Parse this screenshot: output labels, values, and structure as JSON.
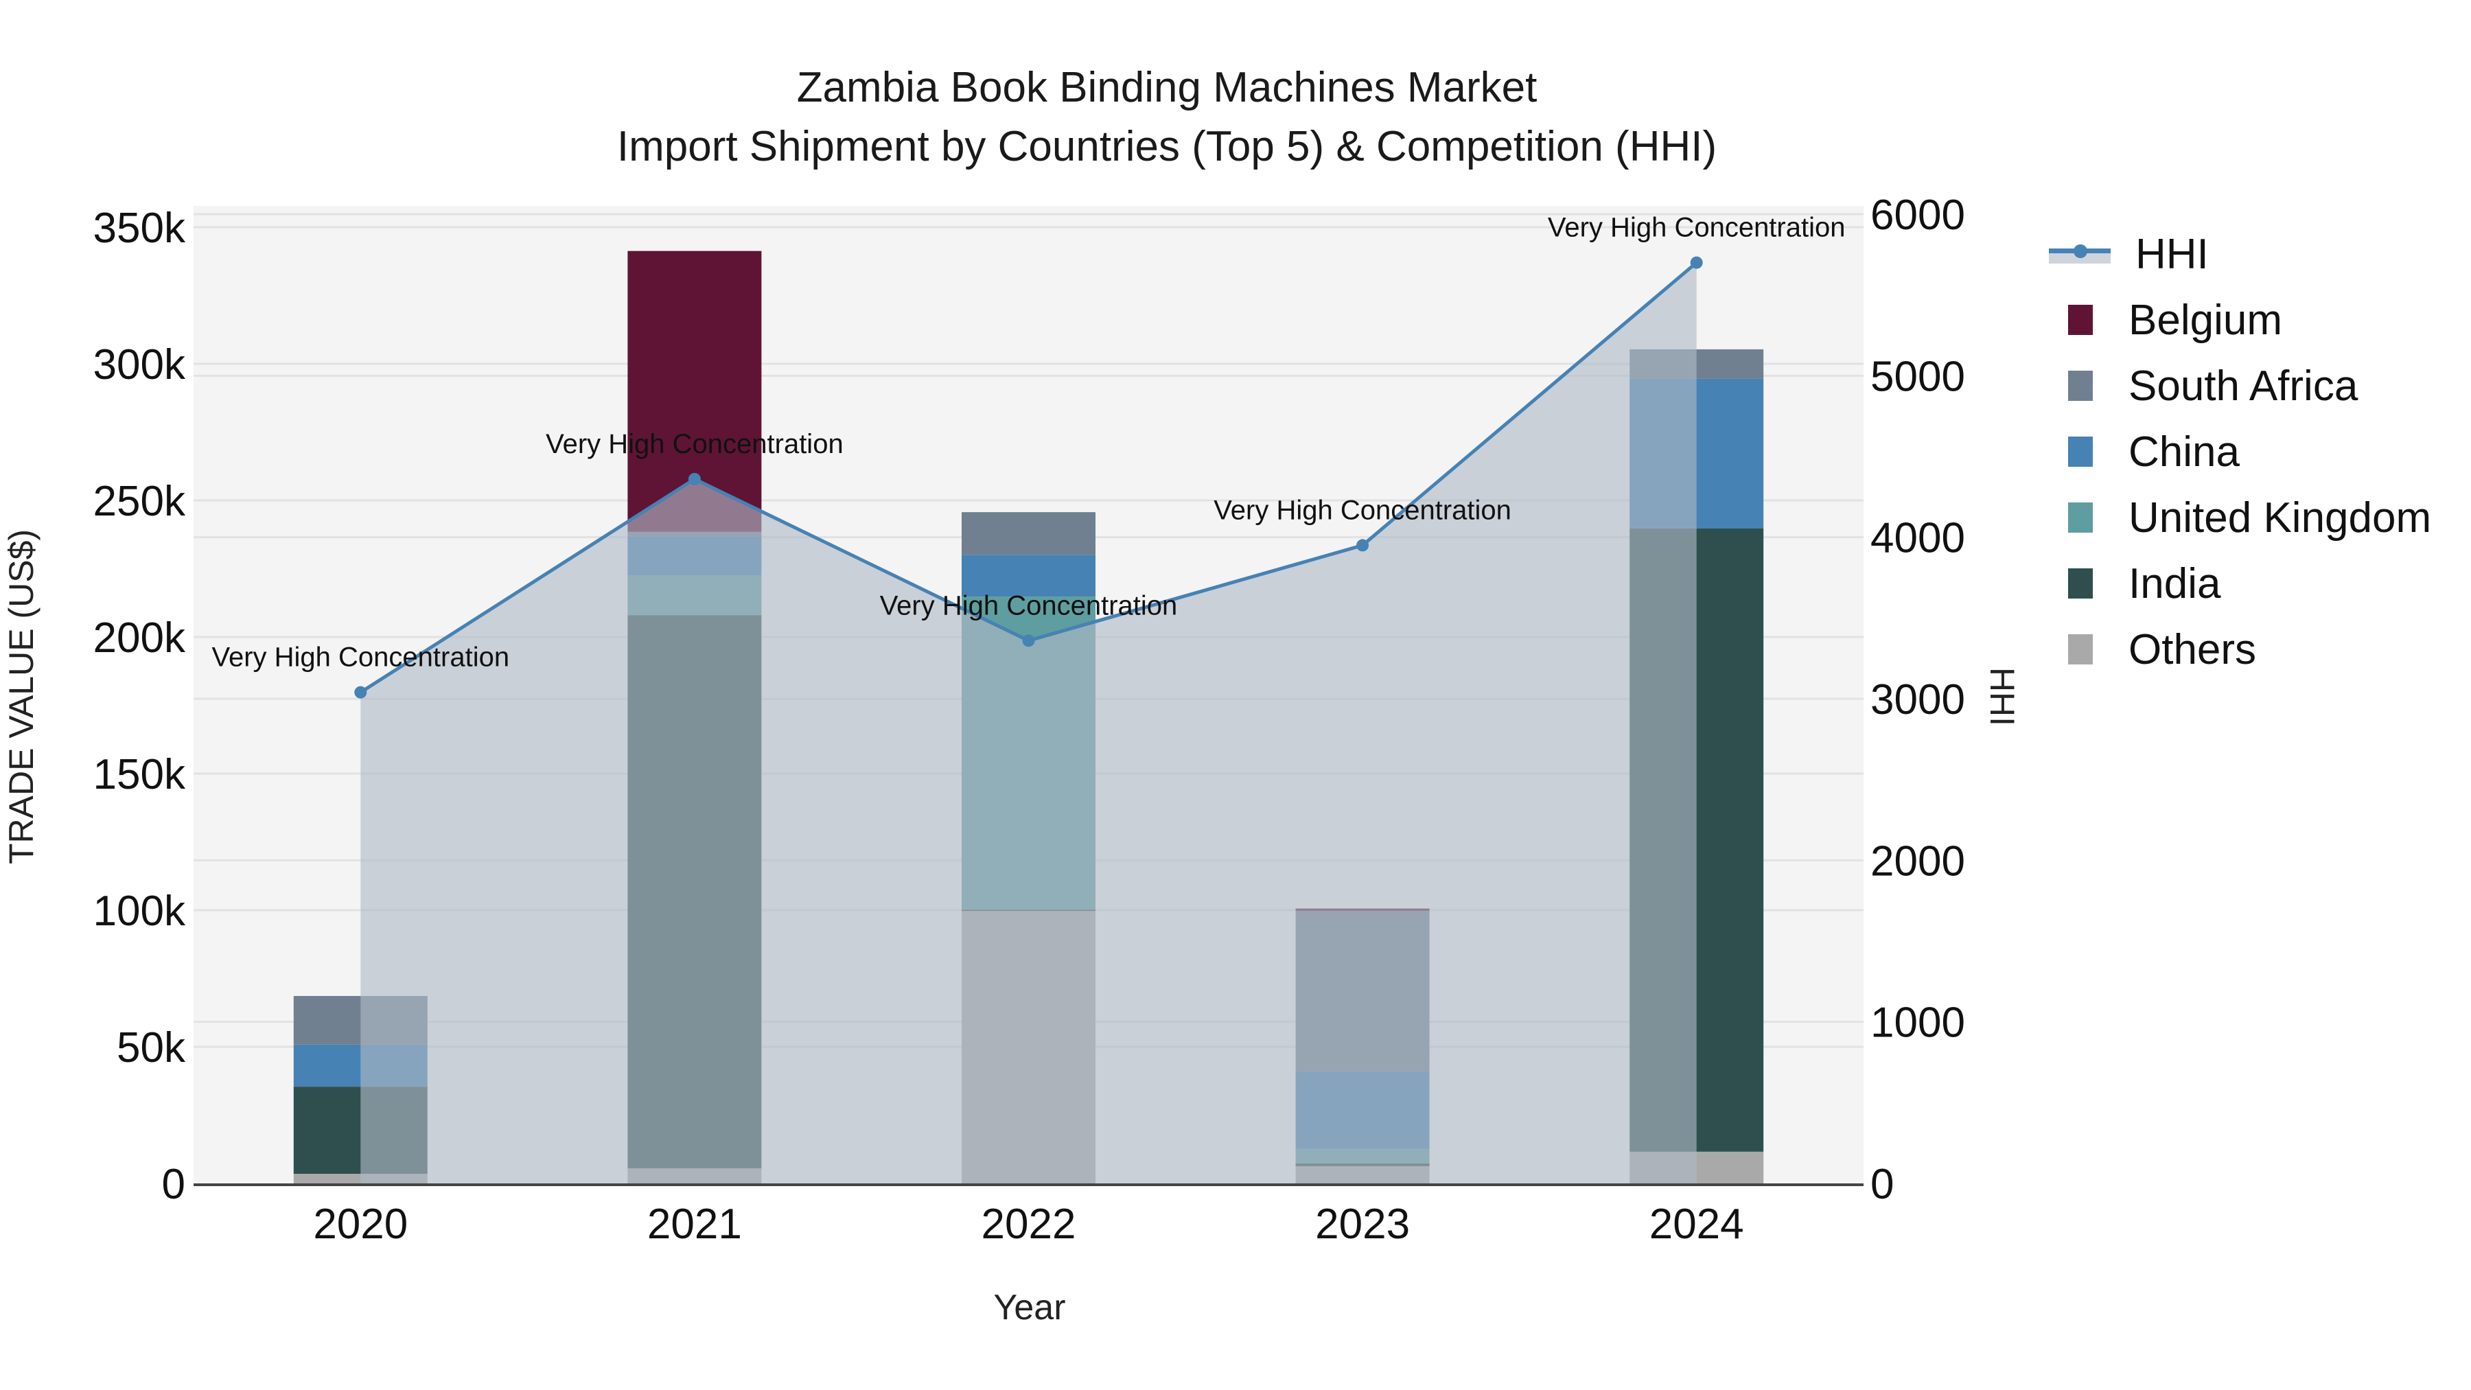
{
  "title": {
    "line1": "Zambia Book Binding Machines Market",
    "line2": "Import Shipment by Countries (Top 5) & Competition (HHI)"
  },
  "axes": {
    "x_title": "Year",
    "y_left_title": "TRADE VALUE (US$)",
    "y_right_title": "HHI",
    "y_left_ticks": [
      "0",
      "50k",
      "100k",
      "150k",
      "200k",
      "250k",
      "300k",
      "350k"
    ],
    "y_right_ticks": [
      "0",
      "1000",
      "2000",
      "3000",
      "4000",
      "5000",
      "6000"
    ]
  },
  "legend": {
    "items": [
      {
        "label": "HHI",
        "type": "line",
        "color": "#4682b4"
      },
      {
        "label": "Belgium",
        "type": "bar",
        "color": "#5f1435"
      },
      {
        "label": "South Africa",
        "type": "bar",
        "color": "#708090"
      },
      {
        "label": "China",
        "type": "bar",
        "color": "#4682b4"
      },
      {
        "label": "United Kingdom",
        "type": "bar",
        "color": "#5f9ea0"
      },
      {
        "label": "India",
        "type": "bar",
        "color": "#2f4f4f"
      },
      {
        "label": "Others",
        "type": "bar",
        "color": "#a9a9a9"
      }
    ]
  },
  "colors": {
    "plot_bg": "#f4f4f4",
    "grid": "#e2e2e2",
    "hhi_line": "#4682b4",
    "hhi_fill": "rgba(176,185,199,0.62)",
    "zero_line": "#444444"
  },
  "chart_data": {
    "type": "bar",
    "subtype": "stacked bar + line (dual axis)",
    "title": "Zambia Book Binding Machines Market — Import Shipment by Countries (Top 5) & Competition (HHI)",
    "xlabel": "Year",
    "ylabel": "TRADE VALUE (US$)",
    "y2label": "HHI",
    "ylim": [
      0,
      355000
    ],
    "y2lim": [
      0,
      6050
    ],
    "grid": true,
    "legend_position": "right",
    "categories": [
      "2020",
      "2021",
      "2022",
      "2023",
      "2024"
    ],
    "series": [
      {
        "name": "Others",
        "color": "#a9a9a9",
        "values": [
          3500,
          5500,
          99700,
          6300,
          11600
        ]
      },
      {
        "name": "India",
        "color": "#2f4f4f",
        "values": [
          31900,
          202500,
          500,
          1000,
          228100
        ]
      },
      {
        "name": "United Kingdom",
        "color": "#5f9ea0",
        "values": [
          0,
          14600,
          114600,
          5300,
          0
        ]
      },
      {
        "name": "China",
        "color": "#4682b4",
        "values": [
          15400,
          14100,
          15300,
          28400,
          54800
        ]
      },
      {
        "name": "South Africa",
        "color": "#708090",
        "values": [
          17800,
          1800,
          15600,
          58800,
          10800
        ]
      },
      {
        "name": "Belgium",
        "color": "#5f1435",
        "values": [
          0,
          102800,
          0,
          800,
          0
        ]
      }
    ],
    "line_series": {
      "name": "HHI",
      "axis": "right",
      "color": "#4682b4",
      "values": [
        3040,
        4360,
        3360,
        3950,
        5700
      ],
      "annotations": [
        "Very High Concentration",
        "Very High Concentration",
        "Very High Concentration",
        "Very High Concentration",
        "Very High Concentration"
      ]
    }
  }
}
